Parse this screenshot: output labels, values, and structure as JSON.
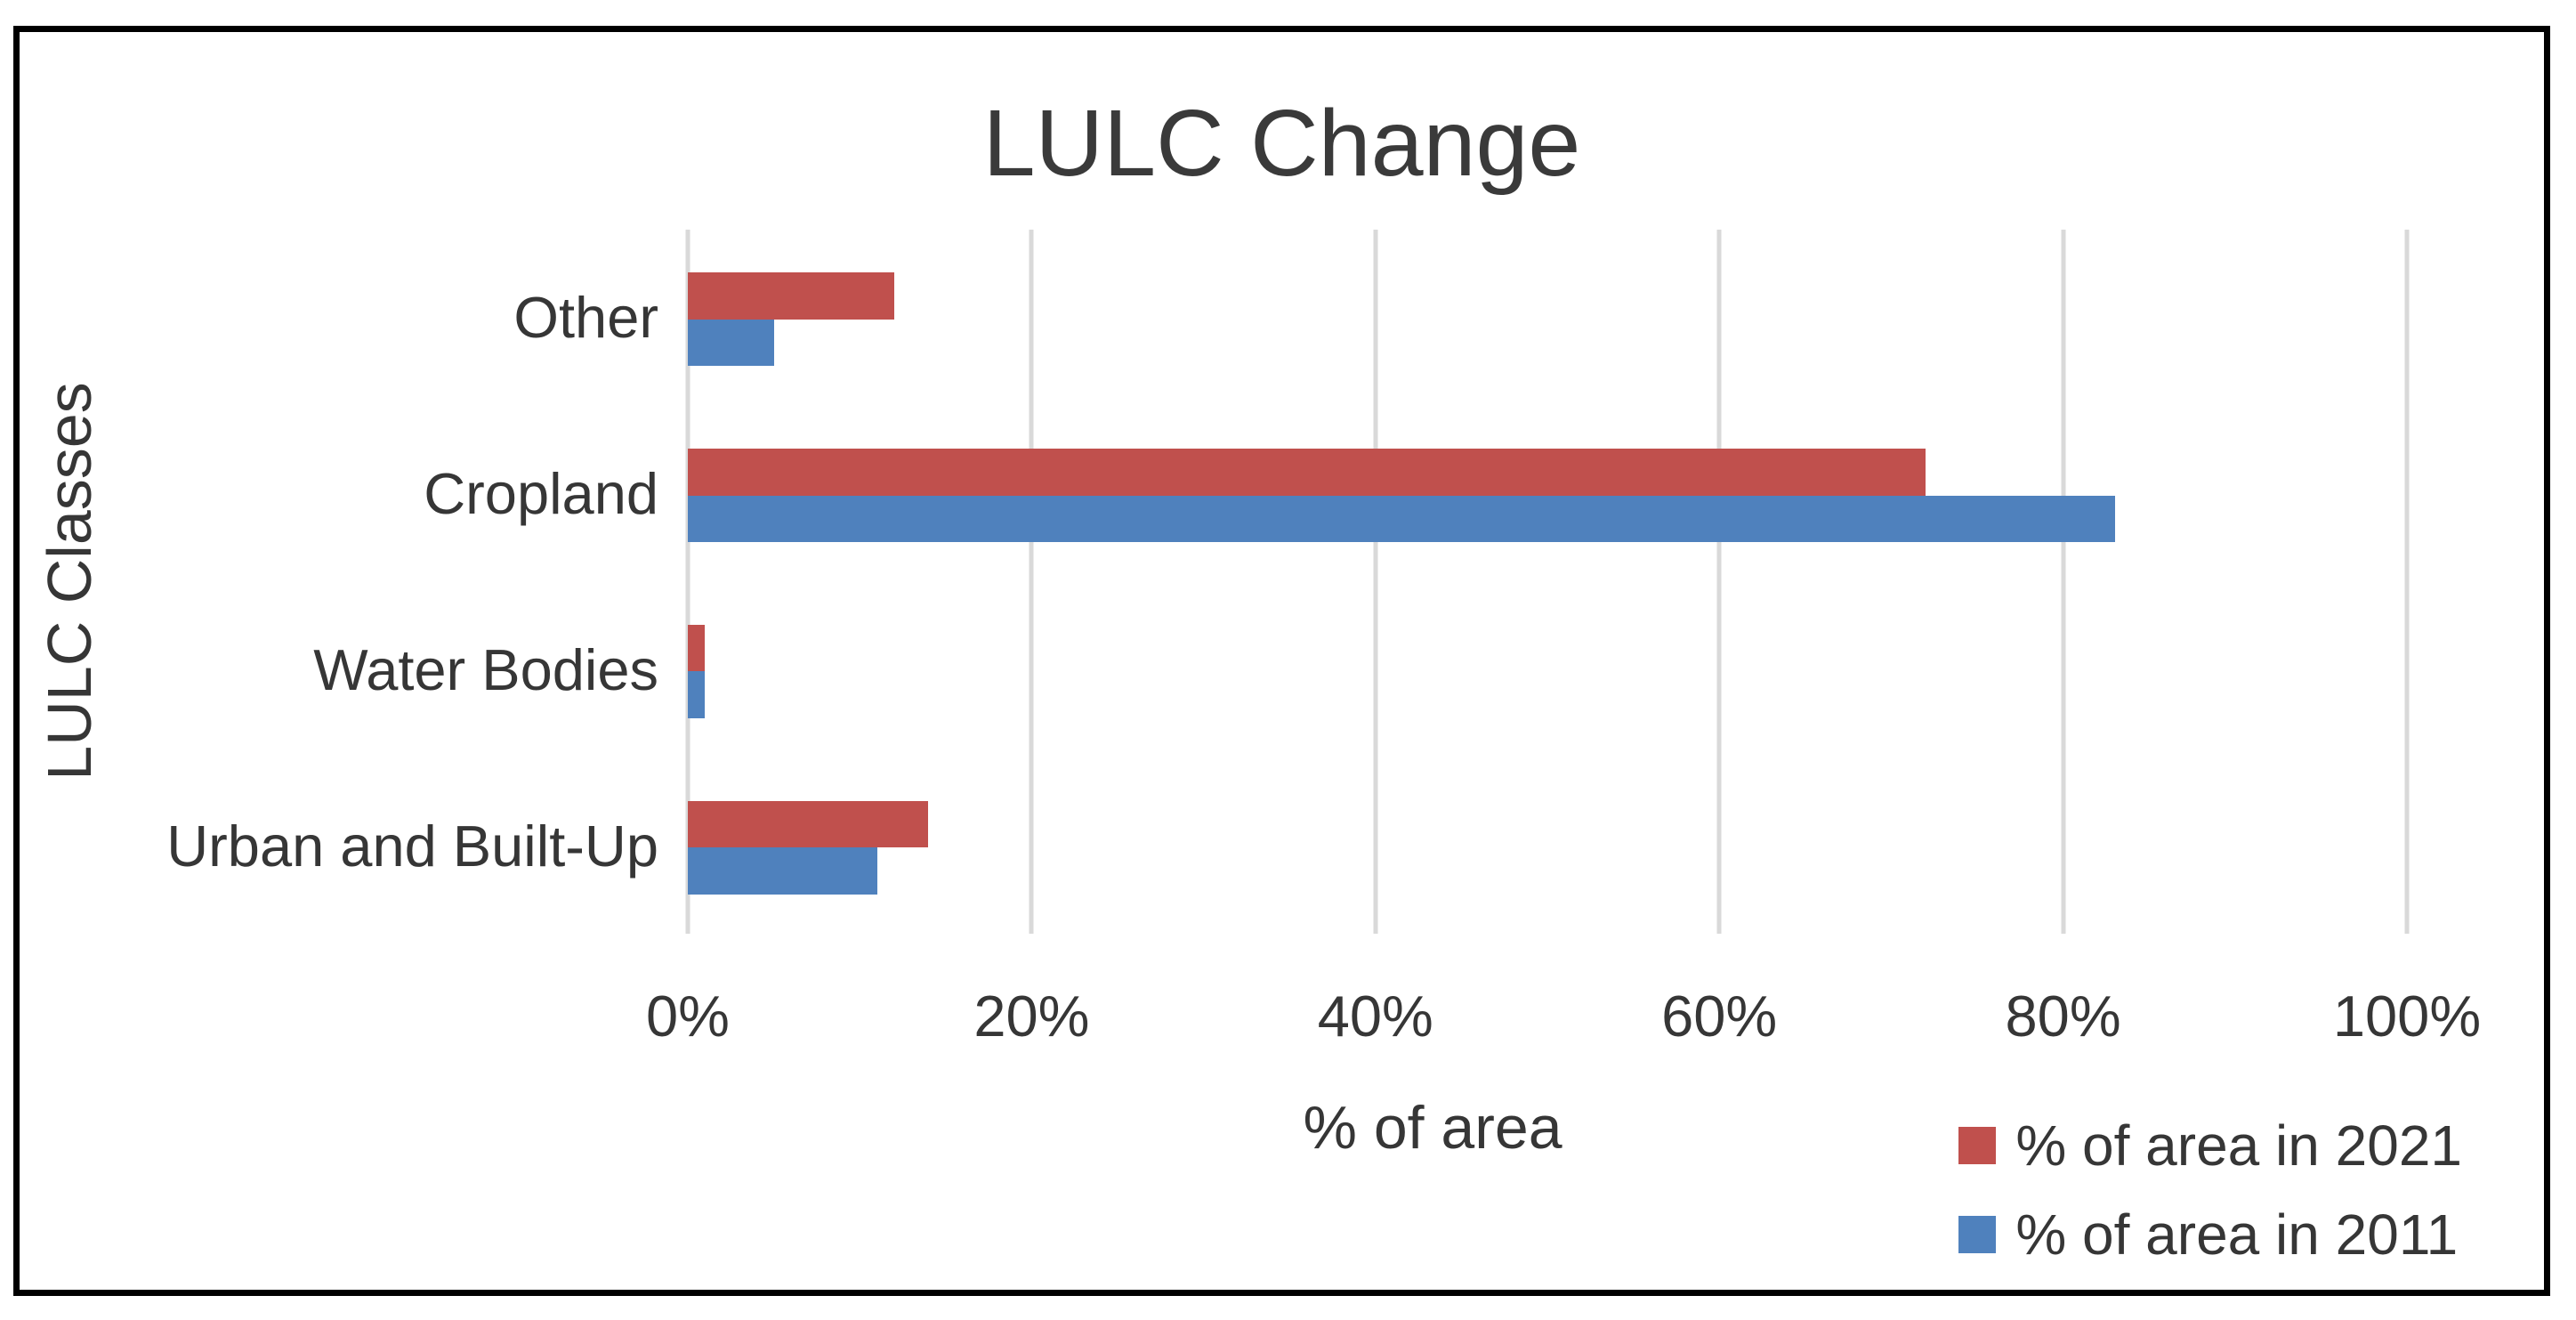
{
  "chart_data": {
    "type": "bar",
    "orientation": "horizontal",
    "title": "LULC Change",
    "xlabel": "% of area",
    "ylabel": "LULC Classes",
    "categories": [
      "Other",
      "Cropland",
      "Water Bodies",
      "Urban and Built-Up"
    ],
    "series": [
      {
        "name": "% of area in 2021",
        "color": "#C0504D",
        "values": [
          12,
          72,
          1,
          14
        ]
      },
      {
        "name": "% of area in 2011",
        "color": "#4F81BD",
        "values": [
          5,
          83,
          1,
          11
        ]
      }
    ],
    "xlim": [
      0,
      100
    ],
    "x_tick_step": 20,
    "x_tick_labels": [
      "0%",
      "20%",
      "40%",
      "60%",
      "80%",
      "100%"
    ],
    "grid": "vertical-only",
    "gridline_color": "#D9D9D9",
    "text_color": "#363636",
    "frame_border_color": "#000000",
    "background_color": "#FFFFFF",
    "legend_position": "bottom-right"
  }
}
